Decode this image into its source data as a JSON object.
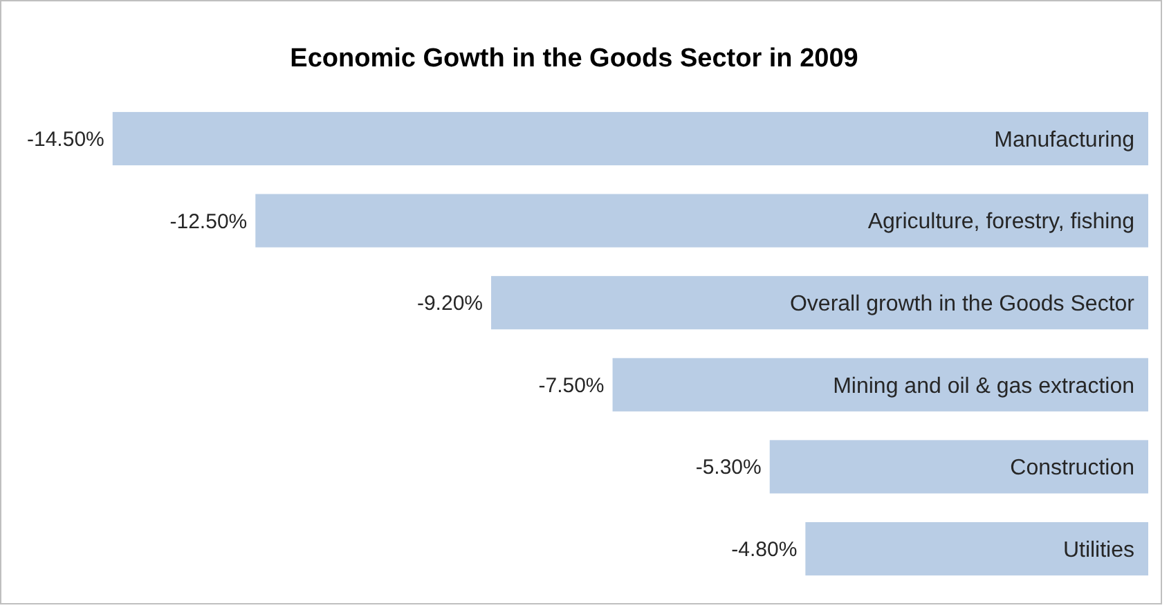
{
  "chart_data": {
    "type": "bar",
    "orientation": "horizontal",
    "title": "Economic Gowth in the Goods Sector in 2009",
    "categories": [
      "Manufacturing",
      "Agriculture, forestry, fishing",
      "Overall growth in the Goods Sector",
      "Mining and oil & gas extraction",
      "Construction",
      "Utilities"
    ],
    "values": [
      -14.5,
      -12.5,
      -9.2,
      -7.5,
      -5.3,
      -4.8
    ],
    "value_labels": [
      "-14.50%",
      "-12.50%",
      "-9.20%",
      "-7.50%",
      "-5.30%",
      "-4.80%"
    ],
    "color": "#b9cde5"
  }
}
